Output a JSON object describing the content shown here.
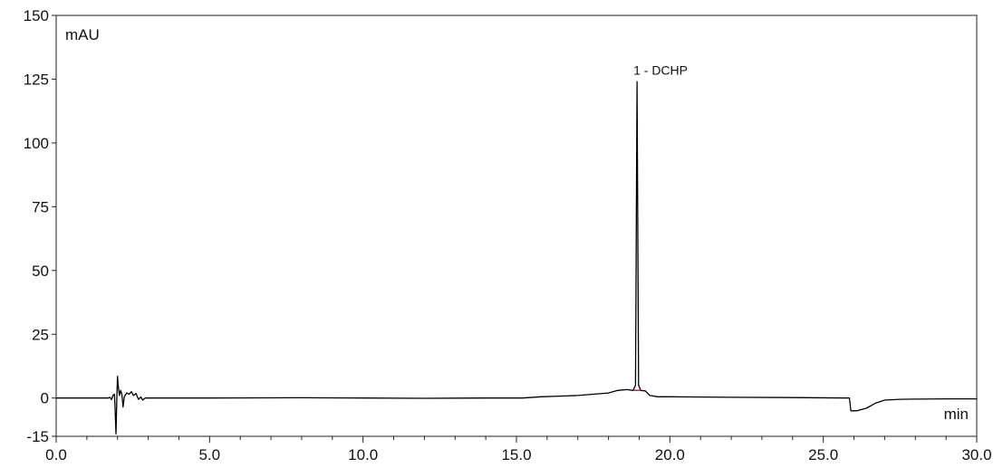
{
  "chart_data": {
    "type": "line",
    "title": "",
    "xlabel": "min",
    "ylabel": "mAU",
    "xlim": [
      0,
      30
    ],
    "ylim": [
      -15,
      150
    ],
    "grid": false,
    "x_ticks": [
      {
        "value": 0,
        "label": "0.0"
      },
      {
        "value": 5,
        "label": "5.0"
      },
      {
        "value": 10,
        "label": "10.0"
      },
      {
        "value": 15,
        "label": "15.0"
      },
      {
        "value": 20,
        "label": "20.0"
      },
      {
        "value": 25,
        "label": "25.0"
      },
      {
        "value": 30,
        "label": "30.0"
      }
    ],
    "y_ticks": [
      {
        "value": -15,
        "label": "-15"
      },
      {
        "value": 0,
        "label": "0"
      },
      {
        "value": 25,
        "label": "25"
      },
      {
        "value": 50,
        "label": "50"
      },
      {
        "value": 75,
        "label": "75"
      },
      {
        "value": 100,
        "label": "100"
      },
      {
        "value": 125,
        "label": "125"
      },
      {
        "value": 150,
        "label": "150"
      }
    ],
    "series": [
      {
        "color": "#000000",
        "points": [
          [
            0.0,
            0.0
          ],
          [
            1.0,
            0.0
          ],
          [
            1.7,
            0.0
          ],
          [
            1.75,
            0.3
          ],
          [
            1.8,
            -0.6
          ],
          [
            1.85,
            1.0
          ],
          [
            1.9,
            1.5
          ],
          [
            1.92,
            -4.0
          ],
          [
            1.95,
            -14.0
          ],
          [
            1.98,
            2.0
          ],
          [
            2.0,
            8.5
          ],
          [
            2.02,
            5.0
          ],
          [
            2.06,
            1.0
          ],
          [
            2.1,
            3.0
          ],
          [
            2.14,
            1.5
          ],
          [
            2.18,
            -3.5
          ],
          [
            2.22,
            0.5
          ],
          [
            2.3,
            2.0
          ],
          [
            2.38,
            1.5
          ],
          [
            2.45,
            2.5
          ],
          [
            2.52,
            1.0
          ],
          [
            2.6,
            1.8
          ],
          [
            2.68,
            -0.5
          ],
          [
            2.76,
            0.4
          ],
          [
            2.82,
            -0.8
          ],
          [
            2.9,
            0.0
          ],
          [
            3.2,
            0.0
          ],
          [
            5.0,
            0.0
          ],
          [
            8.0,
            0.1
          ],
          [
            10.0,
            0.0
          ],
          [
            12.0,
            -0.1
          ],
          [
            14.0,
            0.0
          ],
          [
            15.2,
            0.0
          ],
          [
            15.8,
            0.5
          ],
          [
            16.5,
            0.8
          ],
          [
            17.0,
            1.0
          ],
          [
            17.5,
            1.5
          ],
          [
            18.0,
            2.0
          ],
          [
            18.3,
            3.0
          ],
          [
            18.6,
            3.3
          ],
          [
            18.8,
            3.0
          ],
          [
            18.88,
            5.0
          ],
          [
            18.93,
            124.0
          ],
          [
            18.98,
            5.0
          ],
          [
            19.05,
            3.0
          ],
          [
            19.2,
            2.8
          ],
          [
            19.35,
            1.0
          ],
          [
            19.6,
            0.5
          ],
          [
            20.0,
            0.5
          ],
          [
            22.0,
            0.3
          ],
          [
            24.0,
            0.2
          ],
          [
            25.85,
            0.0
          ],
          [
            25.9,
            -5.0
          ],
          [
            26.1,
            -5.0
          ],
          [
            26.4,
            -4.0
          ],
          [
            26.7,
            -2.0
          ],
          [
            27.0,
            -0.8
          ],
          [
            27.5,
            -0.5
          ],
          [
            28.0,
            -0.4
          ],
          [
            29.0,
            -0.3
          ],
          [
            30.0,
            -0.3
          ]
        ]
      }
    ],
    "peaks": [
      {
        "label": "1 - DCHP",
        "retention_time": 18.93,
        "height": 124.0,
        "baseline_color": "#e11a1a"
      }
    ]
  }
}
